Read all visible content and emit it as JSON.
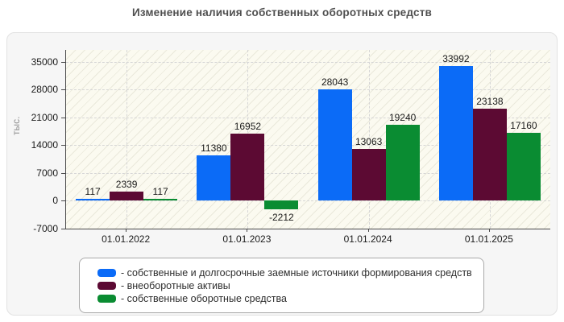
{
  "title": "Изменение наличия собственных оборотных средств",
  "chart_data": {
    "type": "bar",
    "title": "Изменение наличия собственных оборотных средств",
    "xlabel": "",
    "ylabel": "тыс.",
    "categories": [
      "01.01.2022",
      "01.01.2023",
      "01.01.2024",
      "01.01.2025"
    ],
    "series": [
      {
        "name": "- собственные и долгосрочные заемные источники формирования средств",
        "color": "#0b6bf7",
        "values": [
          117,
          11380,
          28043,
          33992
        ]
      },
      {
        "name": "- внеоборотные активы",
        "color": "#5c0a33",
        "values": [
          2339,
          16952,
          13063,
          23138
        ]
      },
      {
        "name": "- собственные оборотные средства",
        "color": "#0a8c32",
        "values": [
          117,
          -2212,
          19240,
          17160
        ]
      }
    ],
    "y_ticks": [
      35000,
      28000,
      21000,
      14000,
      7000,
      0,
      -7000
    ],
    "ylim": [
      -7000,
      38000
    ],
    "grid": true,
    "legend_position": "bottom",
    "plot_background": "#fbfaf0",
    "panel_background": "#f6f6f6"
  }
}
